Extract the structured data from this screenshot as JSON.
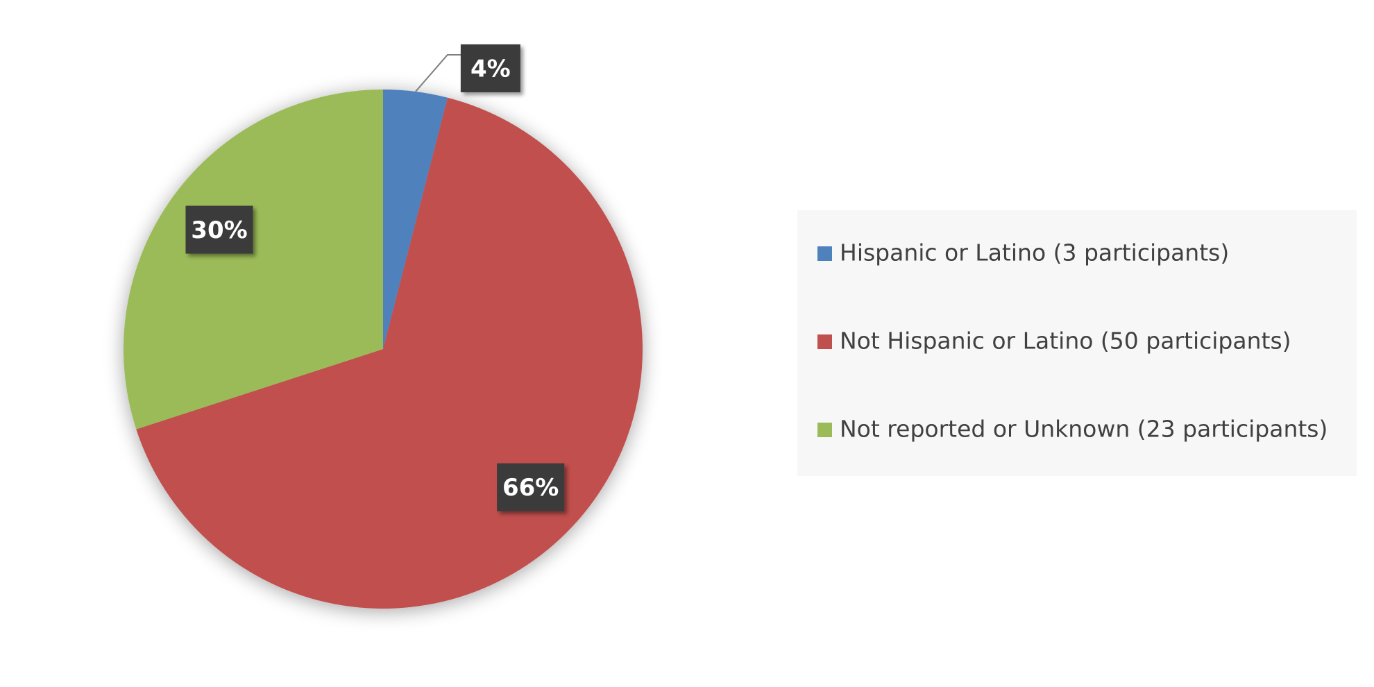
{
  "chart_data": {
    "type": "pie",
    "categories": [
      "Hispanic or Latino (3 participants)",
      "Not Hispanic or Latino (50 participants)",
      "Not reported or Unknown (23 participants)"
    ],
    "values": [
      4,
      66,
      30
    ],
    "value_labels": [
      "4%",
      "66%",
      "30%"
    ],
    "colors": [
      "#4f81bd",
      "#c0504d",
      "#9bbb59"
    ],
    "legend": "right"
  }
}
